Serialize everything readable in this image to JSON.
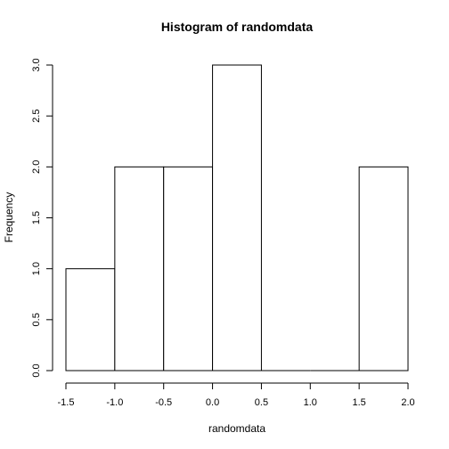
{
  "chart_data": {
    "type": "bar",
    "title": "Histogram of randomdata",
    "xlabel": "randomdata",
    "ylabel": "Frequency",
    "bins": [
      {
        "start": -1.5,
        "end": -1.0,
        "count": 1
      },
      {
        "start": -1.0,
        "end": -0.5,
        "count": 2
      },
      {
        "start": -0.5,
        "end": 0.0,
        "count": 2
      },
      {
        "start": 0.0,
        "end": 0.5,
        "count": 3
      },
      {
        "start": 0.5,
        "end": 1.0,
        "count": 0
      },
      {
        "start": 1.0,
        "end": 1.5,
        "count": 0
      },
      {
        "start": 1.5,
        "end": 2.0,
        "count": 2
      }
    ],
    "xlim": [
      -1.5,
      2.0
    ],
    "ylim": [
      0,
      3.0
    ],
    "x_ticks": [
      "-1.5",
      "-1.0",
      "-0.5",
      "0.0",
      "0.5",
      "1.0",
      "1.5",
      "2.0"
    ],
    "y_ticks": [
      "0.0",
      "0.5",
      "1.0",
      "1.5",
      "2.0",
      "2.5",
      "3.0"
    ],
    "grid": false,
    "bar_fill": "#ffffff",
    "bar_stroke": "#000000"
  }
}
